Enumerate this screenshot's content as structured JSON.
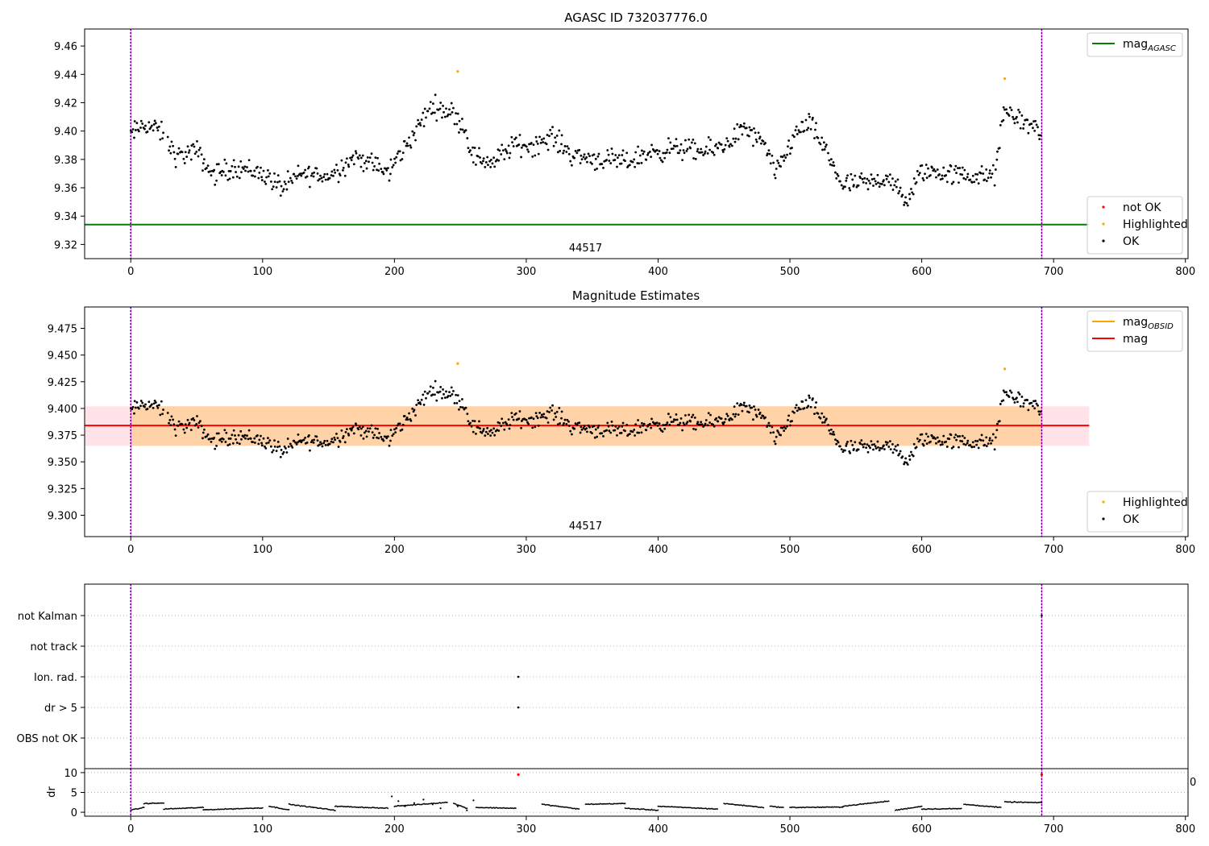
{
  "chart_data": [
    {
      "type": "scatter",
      "title": "AGASC ID 732037776.0",
      "xlim": [
        -35,
        802
      ],
      "ylim": [
        9.31,
        9.472
      ],
      "x_ticks": [
        0,
        100,
        200,
        300,
        400,
        500,
        600,
        700,
        800
      ],
      "y_ticks": [
        9.32,
        9.34,
        9.36,
        9.38,
        9.4,
        9.42,
        9.44,
        9.46
      ],
      "y_tick_decimals": 2,
      "obsid_label": {
        "text": "44517",
        "x": 345
      },
      "vlines": [
        0,
        691
      ],
      "lines": [
        {
          "name": "mag_AGASC",
          "y": 9.334,
          "x": [
            -35,
            727
          ],
          "color": "#008000"
        }
      ],
      "highlighted": [
        {
          "x": 248,
          "y": 9.442
        },
        {
          "x": 663,
          "y": 9.437
        }
      ],
      "ok_trend": [
        [
          0,
          9.397
        ],
        [
          10,
          9.405
        ],
        [
          22,
          9.4
        ],
        [
          35,
          9.382
        ],
        [
          50,
          9.386
        ],
        [
          62,
          9.369
        ],
        [
          80,
          9.375
        ],
        [
          100,
          9.37
        ],
        [
          115,
          9.36
        ],
        [
          130,
          9.37
        ],
        [
          150,
          9.368
        ],
        [
          170,
          9.382
        ],
        [
          185,
          9.376
        ],
        [
          195,
          9.37
        ],
        [
          205,
          9.385
        ],
        [
          215,
          9.398
        ],
        [
          228,
          9.418
        ],
        [
          242,
          9.414
        ],
        [
          252,
          9.405
        ],
        [
          260,
          9.382
        ],
        [
          275,
          9.378
        ],
        [
          290,
          9.39
        ],
        [
          305,
          9.39
        ],
        [
          320,
          9.396
        ],
        [
          335,
          9.383
        ],
        [
          355,
          9.38
        ],
        [
          375,
          9.378
        ],
        [
          395,
          9.385
        ],
        [
          415,
          9.388
        ],
        [
          435,
          9.385
        ],
        [
          450,
          9.39
        ],
        [
          465,
          9.402
        ],
        [
          480,
          9.39
        ],
        [
          490,
          9.37
        ],
        [
          505,
          9.4
        ],
        [
          515,
          9.405
        ],
        [
          525,
          9.39
        ],
        [
          540,
          9.362
        ],
        [
          560,
          9.363
        ],
        [
          575,
          9.368
        ],
        [
          588,
          9.349
        ],
        [
          600,
          9.372
        ],
        [
          620,
          9.37
        ],
        [
          640,
          9.368
        ],
        [
          655,
          9.368
        ],
        [
          663,
          9.415
        ],
        [
          680,
          9.405
        ],
        [
          691,
          9.4
        ]
      ],
      "legends": [
        {
          "position": "top-right",
          "entries": [
            {
              "label": "mag",
              "sub": "AGASC",
              "kind": "line",
              "color": "#008000"
            }
          ]
        },
        {
          "position": "lower-right",
          "entries": [
            {
              "label": "not OK",
              "kind": "point",
              "color": "#ff0000"
            },
            {
              "label": "Highlighted",
              "kind": "point",
              "color": "#ffa500"
            },
            {
              "label": "OK",
              "kind": "point",
              "color": "#000000"
            }
          ]
        }
      ]
    },
    {
      "type": "scatter",
      "title": "Magnitude Estimates",
      "xlim": [
        -35,
        802
      ],
      "ylim": [
        9.28,
        9.495
      ],
      "x_ticks": [
        0,
        100,
        200,
        300,
        400,
        500,
        600,
        700,
        800
      ],
      "y_ticks": [
        9.3,
        9.325,
        9.35,
        9.375,
        9.4,
        9.425,
        9.45,
        9.475
      ],
      "y_tick_decimals": 3,
      "obsid_label": {
        "text": "44517",
        "x": 345
      },
      "vlines": [
        0,
        691
      ],
      "lines": [
        {
          "name": "mag",
          "y": 9.384,
          "x": [
            -35,
            727
          ],
          "color": "#ff0000"
        }
      ],
      "bands": [
        {
          "x": [
            -35,
            727
          ],
          "y": [
            9.365,
            9.402
          ],
          "color": "#ffc0cb",
          "opacity": 0.45
        },
        {
          "x": [
            0,
            691
          ],
          "y": [
            9.365,
            9.402
          ],
          "color": "#ffa500",
          "opacity": 0.28
        }
      ],
      "highlighted": [
        {
          "x": 248,
          "y": 9.442
        },
        {
          "x": 663,
          "y": 9.437
        }
      ],
      "ok_trend": "same_as_first",
      "legends": [
        {
          "position": "top-right",
          "entries": [
            {
              "label": "mag",
              "sub": "OBSID",
              "kind": "line",
              "color": "#ffa500"
            },
            {
              "label": "mag",
              "kind": "line",
              "color": "#ff0000"
            }
          ]
        },
        {
          "position": "lower-right",
          "entries": [
            {
              "label": "Highlighted",
              "kind": "point",
              "color": "#ffa500"
            },
            {
              "label": "OK",
              "kind": "point",
              "color": "#000000"
            }
          ]
        }
      ]
    },
    {
      "type": "scatter",
      "xlim": [
        -35,
        802
      ],
      "flag_categories": [
        "not Kalman",
        "not track",
        "Ion. rad.",
        "dr > 5",
        "OBS not OK"
      ],
      "flag_points": [
        {
          "category": "Ion. rad.",
          "x": 294
        },
        {
          "category": "dr > 5",
          "x": 294
        },
        {
          "category": "not Kalman",
          "x": 691
        }
      ],
      "vlines": [
        0,
        691
      ]
    },
    {
      "type": "scatter",
      "xlim": [
        -35,
        802
      ],
      "ylim": [
        -1,
        11
      ],
      "ylabel": "dr",
      "x_ticks": [
        0,
        100,
        200,
        300,
        400,
        500,
        600,
        700,
        800
      ],
      "y_ticks": [
        0,
        5,
        10
      ],
      "stray_tick_label": "0",
      "vlines": [
        0,
        691
      ],
      "red_points": [
        {
          "x": 294,
          "y": 9.5
        },
        {
          "x": 691,
          "y": 9.5
        }
      ],
      "segments": [
        {
          "x": [
            0,
            10
          ],
          "y": [
            0.5,
            1.2
          ]
        },
        {
          "x": [
            10,
            25
          ],
          "y": [
            2.2,
            2.3
          ]
        },
        {
          "x": [
            25,
            55
          ],
          "y": [
            0.8,
            1.2
          ]
        },
        {
          "x": [
            55,
            100
          ],
          "y": [
            0.6,
            1.1
          ]
        },
        {
          "x": [
            105,
            120
          ],
          "y": [
            1.5,
            0.6
          ]
        },
        {
          "x": [
            120,
            155
          ],
          "y": [
            2.0,
            0.5
          ]
        },
        {
          "x": [
            155,
            195
          ],
          "y": [
            1.5,
            1.0
          ]
        },
        {
          "x": [
            200,
            240
          ],
          "y": [
            1.5,
            2.5
          ]
        },
        {
          "x": [
            245,
            255
          ],
          "y": [
            2.2,
            1.0
          ]
        },
        {
          "x": [
            262,
            292
          ],
          "y": [
            1.2,
            1.0
          ]
        },
        {
          "x": [
            312,
            340
          ],
          "y": [
            2.0,
            0.8
          ]
        },
        {
          "x": [
            345,
            375
          ],
          "y": [
            2.0,
            2.2
          ]
        },
        {
          "x": [
            375,
            400
          ],
          "y": [
            1.0,
            0.5
          ]
        },
        {
          "x": [
            400,
            445
          ],
          "y": [
            1.5,
            0.8
          ]
        },
        {
          "x": [
            450,
            480
          ],
          "y": [
            2.2,
            1.2
          ]
        },
        {
          "x": [
            485,
            495
          ],
          "y": [
            1.5,
            1.2
          ]
        },
        {
          "x": [
            500,
            540
          ],
          "y": [
            1.2,
            1.3
          ]
        },
        {
          "x": [
            540,
            575
          ],
          "y": [
            1.5,
            2.8
          ]
        },
        {
          "x": [
            580,
            600
          ],
          "y": [
            0.5,
            1.5
          ]
        },
        {
          "x": [
            600,
            630
          ],
          "y": [
            0.8,
            0.9
          ]
        },
        {
          "x": [
            632,
            660
          ],
          "y": [
            2.0,
            1.2
          ]
        },
        {
          "x": [
            663,
            691
          ],
          "y": [
            2.6,
            2.4
          ]
        }
      ],
      "scatter_points": [
        {
          "x": 198,
          "y": 4.0
        },
        {
          "x": 203,
          "y": 2.8
        },
        {
          "x": 208,
          "y": 1.5
        },
        {
          "x": 215,
          "y": 2.3
        },
        {
          "x": 222,
          "y": 3.2
        },
        {
          "x": 229,
          "y": 2.0
        },
        {
          "x": 235,
          "y": 1.0
        },
        {
          "x": 248,
          "y": 1.5
        },
        {
          "x": 255,
          "y": 0.5
        },
        {
          "x": 260,
          "y": 3.0
        }
      ]
    }
  ]
}
